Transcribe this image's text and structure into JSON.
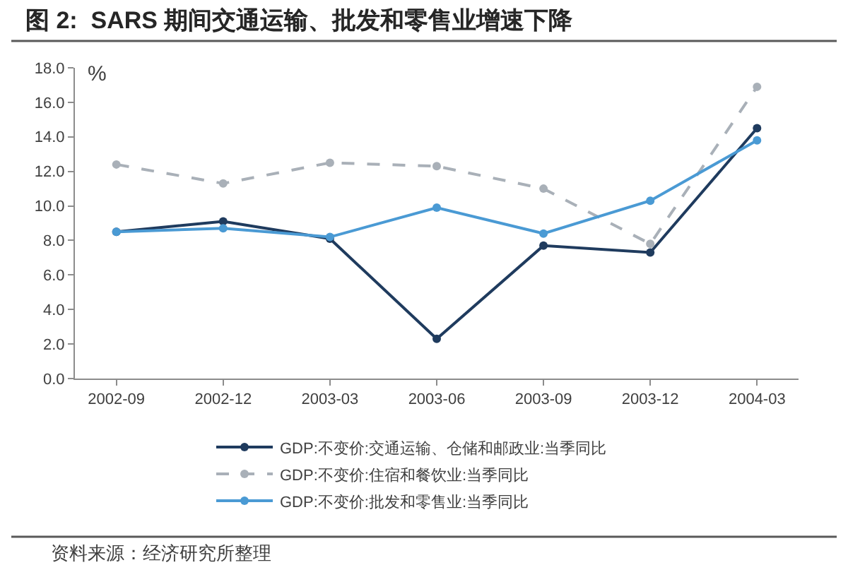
{
  "chart_data": {
    "type": "line",
    "title": "图 2:  SARS 期间交通运输、批发和零售业增速下降",
    "ylabel": "%",
    "categories": [
      "2002-09",
      "2002-12",
      "2003-03",
      "2003-06",
      "2003-09",
      "2003-12",
      "2004-03"
    ],
    "series": [
      {
        "name": "GDP:不变价:交通运输、仓储和邮政业:当季同比",
        "color": "#1f3b5e",
        "line_style": "solid",
        "values": [
          8.5,
          9.1,
          8.1,
          2.3,
          7.7,
          7.3,
          14.5
        ]
      },
      {
        "name": "GDP:不变价:住宿和餐饮业:当季同比",
        "color": "#a9b0b8",
        "line_style": "dashed",
        "values": [
          12.4,
          11.3,
          12.5,
          12.3,
          11.0,
          7.8,
          16.9
        ]
      },
      {
        "name": "GDP:不变价:批发和零售业:当季同比",
        "color": "#4a9ad4",
        "line_style": "solid",
        "values": [
          8.5,
          8.7,
          8.2,
          9.9,
          8.4,
          10.3,
          13.8
        ]
      }
    ],
    "ylim": [
      0,
      18
    ],
    "yticks": [
      {
        "value": 0,
        "label": "0.0"
      },
      {
        "value": 2,
        "label": "2.0"
      },
      {
        "value": 4,
        "label": "4.0"
      },
      {
        "value": 6,
        "label": "6.0"
      },
      {
        "value": 8,
        "label": "8.0"
      },
      {
        "value": 10,
        "label": "10.0"
      },
      {
        "value": 12,
        "label": "12.0"
      },
      {
        "value": 14,
        "label": "14.0"
      },
      {
        "value": 16,
        "label": "16.0"
      },
      {
        "value": 18,
        "label": "18.0"
      }
    ],
    "marker": "circle",
    "grid": false,
    "legend": "bottom",
    "annotations": [
      "资料来源：经济研究所整理"
    ]
  }
}
